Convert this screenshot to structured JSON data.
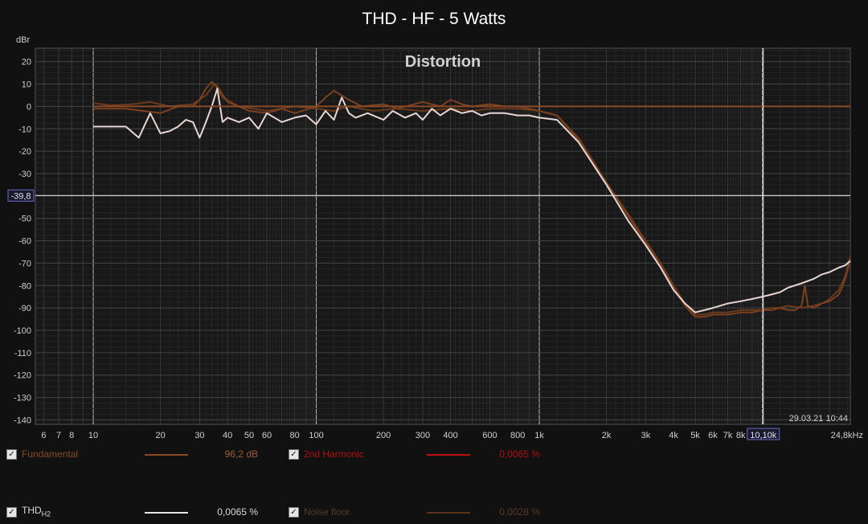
{
  "chart_data": {
    "type": "line",
    "title": "THD - HF - 5 Watts",
    "annotation": "Distortion",
    "ylabel": "dBr",
    "xlabel": "",
    "x_scale": "log",
    "xlim": [
      5.5,
      24800
    ],
    "ylim": [
      -142,
      26
    ],
    "grid": true,
    "y_ticks": [
      20,
      10,
      0,
      -10,
      -20,
      -30,
      -50,
      -60,
      -70,
      -80,
      -90,
      -100,
      -110,
      -120,
      -130,
      -140
    ],
    "x_tick_labels": [
      {
        "v": 6,
        "t": "6"
      },
      {
        "v": 7,
        "t": "7"
      },
      {
        "v": 8,
        "t": "8"
      },
      {
        "v": 10,
        "t": "10"
      },
      {
        "v": 20,
        "t": "20"
      },
      {
        "v": 30,
        "t": "30"
      },
      {
        "v": 40,
        "t": "40"
      },
      {
        "v": 50,
        "t": "50"
      },
      {
        "v": 60,
        "t": "60"
      },
      {
        "v": 80,
        "t": "80"
      },
      {
        "v": 100,
        "t": "100"
      },
      {
        "v": 200,
        "t": "200"
      },
      {
        "v": 300,
        "t": "300"
      },
      {
        "v": 400,
        "t": "400"
      },
      {
        "v": 600,
        "t": "600"
      },
      {
        "v": 800,
        "t": "800"
      },
      {
        "v": 1000,
        "t": "1k"
      },
      {
        "v": 2000,
        "t": "2k"
      },
      {
        "v": 3000,
        "t": "3k"
      },
      {
        "v": 4000,
        "t": "4k"
      },
      {
        "v": 5000,
        "t": "5k"
      },
      {
        "v": 6000,
        "t": "6k"
      },
      {
        "v": 7000,
        "t": "7k"
      },
      {
        "v": 8000,
        "t": "8k"
      }
    ],
    "x_end_label": "24,8kHz",
    "cursor": {
      "x": 10100,
      "x_label": "10,10k",
      "y": -39.8,
      "y_label": "-39,8"
    },
    "timestamp": "29.03.21 10:44",
    "series": [
      {
        "name": "Noise floor",
        "color": "#6a3a1c",
        "points": [
          [
            10,
            1.5
          ],
          [
            12,
            0.5
          ],
          [
            15,
            1
          ],
          [
            18,
            2
          ],
          [
            22,
            0
          ],
          [
            28,
            1
          ],
          [
            32,
            5
          ],
          [
            35,
            10
          ],
          [
            38,
            4
          ],
          [
            45,
            0
          ],
          [
            60,
            -2
          ],
          [
            80,
            0
          ],
          [
            100,
            -1
          ],
          [
            120,
            -2
          ],
          [
            140,
            0
          ],
          [
            180,
            -2
          ],
          [
            230,
            -1
          ],
          [
            300,
            -2
          ],
          [
            400,
            -1
          ],
          [
            500,
            -2
          ],
          [
            600,
            -1
          ],
          [
            800,
            -1
          ],
          [
            1000,
            -2
          ],
          [
            1200,
            -4
          ],
          [
            1500,
            -14
          ],
          [
            2000,
            -34
          ],
          [
            2500,
            -48
          ],
          [
            3000,
            -60
          ],
          [
            3500,
            -70
          ],
          [
            4000,
            -80
          ],
          [
            4500,
            -88
          ],
          [
            5000,
            -93
          ],
          [
            5500,
            -93
          ],
          [
            6000,
            -92
          ],
          [
            7000,
            -92
          ],
          [
            8000,
            -91
          ],
          [
            9000,
            -91
          ],
          [
            10000,
            -91
          ],
          [
            11000,
            -90
          ],
          [
            12000,
            -90
          ],
          [
            13000,
            -89
          ],
          [
            15000,
            -90
          ],
          [
            17000,
            -89
          ],
          [
            18500,
            -88
          ],
          [
            20000,
            -86
          ],
          [
            22000,
            -82
          ],
          [
            23500,
            -76
          ],
          [
            24800,
            -67
          ]
        ]
      },
      {
        "name": "2nd Harmonic",
        "color": "#7a4020",
        "points": [
          [
            10,
            -1
          ],
          [
            14,
            -1
          ],
          [
            20,
            -3
          ],
          [
            24,
            0
          ],
          [
            28,
            0
          ],
          [
            30,
            3
          ],
          [
            32,
            8
          ],
          [
            34,
            11
          ],
          [
            36,
            9
          ],
          [
            40,
            2
          ],
          [
            45,
            0
          ],
          [
            50,
            -2
          ],
          [
            60,
            -3
          ],
          [
            70,
            -1
          ],
          [
            80,
            -3
          ],
          [
            100,
            0
          ],
          [
            110,
            4
          ],
          [
            120,
            7
          ],
          [
            140,
            3
          ],
          [
            160,
            0
          ],
          [
            200,
            1
          ],
          [
            230,
            -1
          ],
          [
            300,
            2
          ],
          [
            360,
            0
          ],
          [
            400,
            3
          ],
          [
            450,
            1
          ],
          [
            500,
            0
          ],
          [
            600,
            1
          ],
          [
            700,
            0
          ],
          [
            800,
            0
          ],
          [
            900,
            -1
          ],
          [
            1000,
            -2
          ],
          [
            1200,
            -4
          ],
          [
            1500,
            -15
          ],
          [
            2000,
            -34
          ],
          [
            2500,
            -49
          ],
          [
            3000,
            -61
          ],
          [
            3500,
            -71
          ],
          [
            4000,
            -81
          ],
          [
            4500,
            -89
          ],
          [
            5000,
            -94
          ],
          [
            5500,
            -94
          ],
          [
            6000,
            -93
          ],
          [
            7000,
            -93
          ],
          [
            8000,
            -92
          ],
          [
            9000,
            -92
          ],
          [
            10000,
            -91
          ],
          [
            11000,
            -91
          ],
          [
            12000,
            -90
          ],
          [
            13000,
            -91
          ],
          [
            14000,
            -91
          ],
          [
            15000,
            -89
          ],
          [
            15500,
            -80
          ],
          [
            16000,
            -89
          ],
          [
            17000,
            -90
          ],
          [
            18500,
            -88
          ],
          [
            20000,
            -87
          ],
          [
            22000,
            -84
          ],
          [
            23000,
            -80
          ],
          [
            24000,
            -74
          ],
          [
            24800,
            -68
          ]
        ]
      },
      {
        "name": "THD",
        "color": "#e8d6d4",
        "points": [
          [
            10,
            -9
          ],
          [
            12,
            -9
          ],
          [
            14,
            -9
          ],
          [
            16,
            -14
          ],
          [
            18,
            -3
          ],
          [
            20,
            -12
          ],
          [
            22,
            -11
          ],
          [
            24,
            -9
          ],
          [
            26,
            -6
          ],
          [
            28,
            -7
          ],
          [
            30,
            -14
          ],
          [
            32,
            -7
          ],
          [
            34,
            0
          ],
          [
            36,
            8
          ],
          [
            38,
            -7
          ],
          [
            40,
            -5
          ],
          [
            45,
            -7
          ],
          [
            50,
            -5
          ],
          [
            55,
            -10
          ],
          [
            60,
            -3
          ],
          [
            70,
            -7
          ],
          [
            80,
            -5
          ],
          [
            90,
            -4
          ],
          [
            100,
            -8
          ],
          [
            110,
            -2
          ],
          [
            120,
            -6
          ],
          [
            130,
            4
          ],
          [
            140,
            -3
          ],
          [
            150,
            -5
          ],
          [
            170,
            -3
          ],
          [
            200,
            -6
          ],
          [
            220,
            -2
          ],
          [
            250,
            -5
          ],
          [
            280,
            -3
          ],
          [
            300,
            -6
          ],
          [
            330,
            -1
          ],
          [
            360,
            -4
          ],
          [
            400,
            -1
          ],
          [
            450,
            -3
          ],
          [
            500,
            -2
          ],
          [
            550,
            -4
          ],
          [
            600,
            -3
          ],
          [
            700,
            -3
          ],
          [
            800,
            -4
          ],
          [
            900,
            -4
          ],
          [
            1000,
            -5
          ],
          [
            1200,
            -6
          ],
          [
            1500,
            -16
          ],
          [
            2000,
            -35
          ],
          [
            2500,
            -51
          ],
          [
            3000,
            -62
          ],
          [
            3500,
            -72
          ],
          [
            4000,
            -82
          ],
          [
            4500,
            -88
          ],
          [
            5000,
            -92
          ],
          [
            5500,
            -91
          ],
          [
            6000,
            -90
          ],
          [
            7000,
            -88
          ],
          [
            8000,
            -87
          ],
          [
            9000,
            -86
          ],
          [
            10000,
            -85
          ],
          [
            11000,
            -84
          ],
          [
            12000,
            -83
          ],
          [
            13000,
            -81
          ],
          [
            15000,
            -79
          ],
          [
            17000,
            -77
          ],
          [
            18500,
            -75
          ],
          [
            20000,
            -74
          ],
          [
            22000,
            -72
          ],
          [
            23500,
            -71
          ],
          [
            24800,
            -69
          ]
        ]
      }
    ]
  },
  "legend": [
    {
      "label": "Fundamental",
      "label_color": "#8a4a26",
      "swatch": "#8a4a26",
      "value": "96,2 dB",
      "value_color": "#9a5a36",
      "checked": "✓"
    },
    {
      "label": "2nd Harmonic",
      "label_color": "#b01010",
      "swatch": "#c01010",
      "value": "0,0065 %",
      "value_color": "#b01010",
      "checked": "✓"
    },
    {
      "label": "THD",
      "label_sub": "H2",
      "label_color": "#d8d8d8",
      "swatch": "#e6e6e6",
      "value": "0,0065 %",
      "value_color": "#d8d8d8",
      "checked": "✓"
    },
    {
      "label": "Noise floor",
      "label_color": "#5a3a22",
      "swatch": "#5a3520",
      "value": "0,0028 %",
      "value_color": "#5a3a22",
      "checked": "✓"
    }
  ]
}
